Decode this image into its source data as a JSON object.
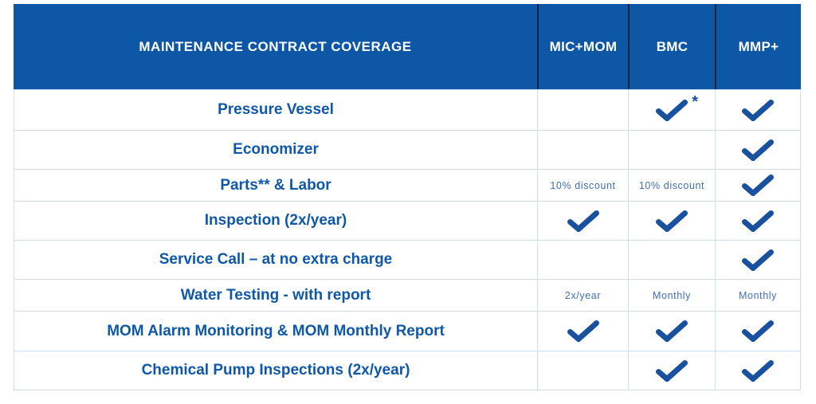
{
  "table": {
    "title": "MAINTENANCE CONTRACT COVERAGE",
    "columns": [
      "MIC+MOM",
      "BMC",
      "MMP+"
    ],
    "rows": [
      {
        "label": "Pressure Vessel",
        "cells": [
          {
            "type": "empty"
          },
          {
            "type": "check",
            "note": "*"
          },
          {
            "type": "check"
          }
        ]
      },
      {
        "label": "Economizer",
        "cells": [
          {
            "type": "empty"
          },
          {
            "type": "empty"
          },
          {
            "type": "check"
          }
        ]
      },
      {
        "label": "Parts** & Labor",
        "cells": [
          {
            "type": "text",
            "text": "10% discount"
          },
          {
            "type": "text",
            "text": "10% discount"
          },
          {
            "type": "check"
          }
        ]
      },
      {
        "label": "Inspection (2x/year)",
        "cells": [
          {
            "type": "check"
          },
          {
            "type": "check"
          },
          {
            "type": "check"
          }
        ]
      },
      {
        "label": "Service Call – at no extra charge",
        "cells": [
          {
            "type": "empty"
          },
          {
            "type": "empty"
          },
          {
            "type": "check"
          }
        ]
      },
      {
        "label": "Water Testing - with report",
        "cells": [
          {
            "type": "text",
            "text": "2x/year"
          },
          {
            "type": "text",
            "text": "Monthly"
          },
          {
            "type": "text",
            "text": "Monthly"
          }
        ]
      },
      {
        "label": "MOM Alarm Monitoring & MOM Monthly Report",
        "cells": [
          {
            "type": "check"
          },
          {
            "type": "check"
          },
          {
            "type": "check"
          }
        ]
      },
      {
        "label": "Chemical Pump Inspections (2x/year)",
        "cells": [
          {
            "type": "empty"
          },
          {
            "type": "check"
          },
          {
            "type": "check"
          }
        ]
      }
    ]
  },
  "colors": {
    "header_background": "#0d57a6",
    "label_text": "#0f58a9",
    "checkmark": "#1a519f",
    "small_text": "#3f6fb4",
    "grid_line": "#cfddf1",
    "header_divider": "#16243e",
    "page_background": "#ffffff"
  }
}
